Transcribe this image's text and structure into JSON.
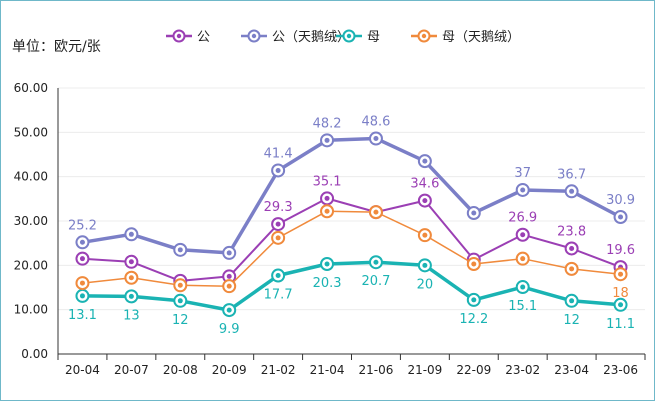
{
  "chart_data": {
    "type": "line",
    "unit_label": "单位：欧元/张",
    "categories": [
      "20-04",
      "20-07",
      "20-08",
      "20-09",
      "21-02",
      "21-04",
      "21-06",
      "21-09",
      "22-09",
      "23-02",
      "23-04",
      "23-06"
    ],
    "ylim": [
      0,
      60
    ],
    "yticks": [
      "0.00",
      "10.00",
      "20.00",
      "30.00",
      "40.00",
      "50.00",
      "60.00"
    ],
    "grid": true,
    "legend_position": "top",
    "series": [
      {
        "name": "公",
        "color": "#9b3fb4",
        "width": 2,
        "values": [
          21.5,
          20.8,
          16.5,
          17.5,
          29.3,
          35.1,
          32.0,
          34.6,
          21.3,
          26.9,
          23.8,
          19.6
        ],
        "labels": [
          "",
          "",
          "",
          "",
          "29.3",
          "35.1",
          "",
          "34.6",
          "",
          "26.9",
          "23.8",
          "19.6"
        ],
        "label_pos": "above"
      },
      {
        "name": "公（天鹅绒）",
        "color": "#7b7fc7",
        "width": 3.5,
        "values": [
          25.2,
          27.0,
          23.5,
          22.8,
          41.4,
          48.2,
          48.6,
          43.5,
          31.8,
          37.0,
          36.7,
          30.9
        ],
        "labels": [
          "25.2",
          "",
          "",
          "",
          "41.4",
          "48.2",
          "48.6",
          "",
          "",
          "37",
          "36.7",
          "30.9"
        ],
        "label_pos": "above"
      },
      {
        "name": "母",
        "color": "#1ab3b3",
        "width": 3.5,
        "values": [
          13.1,
          13.0,
          12.0,
          9.9,
          17.7,
          20.3,
          20.7,
          20.0,
          12.2,
          15.1,
          12.0,
          11.1
        ],
        "labels": [
          "13.1",
          "13",
          "12",
          "9.9",
          "17.7",
          "20.3",
          "20.7",
          "20",
          "12.2",
          "15.1",
          "12",
          "11.1"
        ],
        "label_pos": "below"
      },
      {
        "name": "母（天鹅绒）",
        "color": "#f08a3c",
        "width": 1.5,
        "values": [
          16.0,
          17.2,
          15.5,
          15.3,
          26.2,
          32.2,
          32.0,
          26.8,
          20.3,
          21.5,
          19.2,
          18.0
        ],
        "labels": [
          "",
          "",
          "",
          "",
          "",
          "",
          "",
          "",
          "",
          "",
          "",
          "18"
        ],
        "label_pos": "below"
      }
    ]
  }
}
